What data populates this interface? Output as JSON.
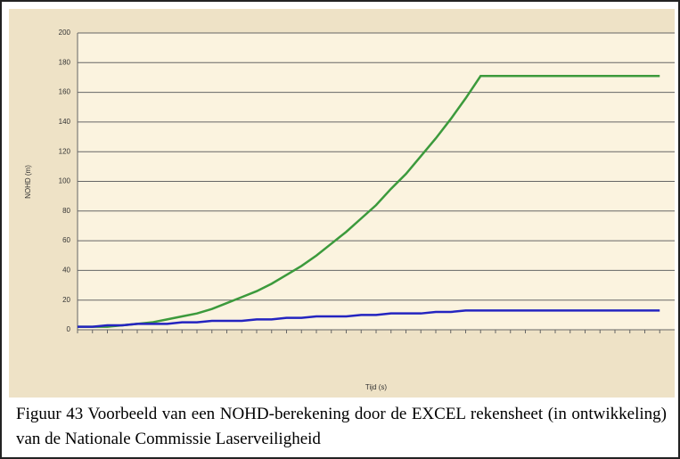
{
  "chart_data": {
    "type": "line",
    "ylabel": "NOHD (m)",
    "xlabel": "Tijd (s)",
    "categories": [
      null,
      null,
      null,
      null,
      null,
      null,
      null,
      null,
      null,
      null,
      null,
      null,
      null,
      null,
      null,
      null,
      null,
      null,
      null,
      null,
      null,
      null,
      null,
      null,
      null,
      null,
      null,
      null,
      null,
      null,
      null,
      null,
      null,
      null,
      null,
      null,
      null,
      null,
      null,
      null
    ],
    "series": [
      {
        "color": "#3c9a3c",
        "values": [
          2,
          2,
          2,
          3,
          4,
          5,
          7,
          9,
          11,
          14,
          18,
          22,
          26,
          31,
          37,
          43,
          50,
          58,
          66,
          75,
          84,
          95,
          105,
          117,
          129,
          142,
          156,
          171,
          171,
          171,
          171,
          171,
          171,
          171,
          171,
          171,
          171,
          171,
          171,
          171
        ]
      },
      {
        "color": "#2424c0",
        "values": [
          2,
          2,
          3,
          3,
          4,
          4,
          4,
          5,
          5,
          6,
          6,
          6,
          7,
          7,
          8,
          8,
          9,
          9,
          9,
          10,
          10,
          11,
          11,
          11,
          12,
          12,
          13,
          13,
          13,
          13,
          13,
          13,
          13,
          13,
          13,
          13,
          13,
          13,
          13,
          13
        ]
      }
    ],
    "ylim": [
      0,
      200
    ],
    "yticks": [
      0,
      20,
      40,
      60,
      80,
      100,
      120,
      140,
      160,
      180,
      200
    ],
    "grid": true
  },
  "caption": "Figuur 43   Voorbeeld van een NOHD-berekening door de EXCEL rekensheet (in ontwikkeling) van de Nationale Commissie Laserveiligheid"
}
